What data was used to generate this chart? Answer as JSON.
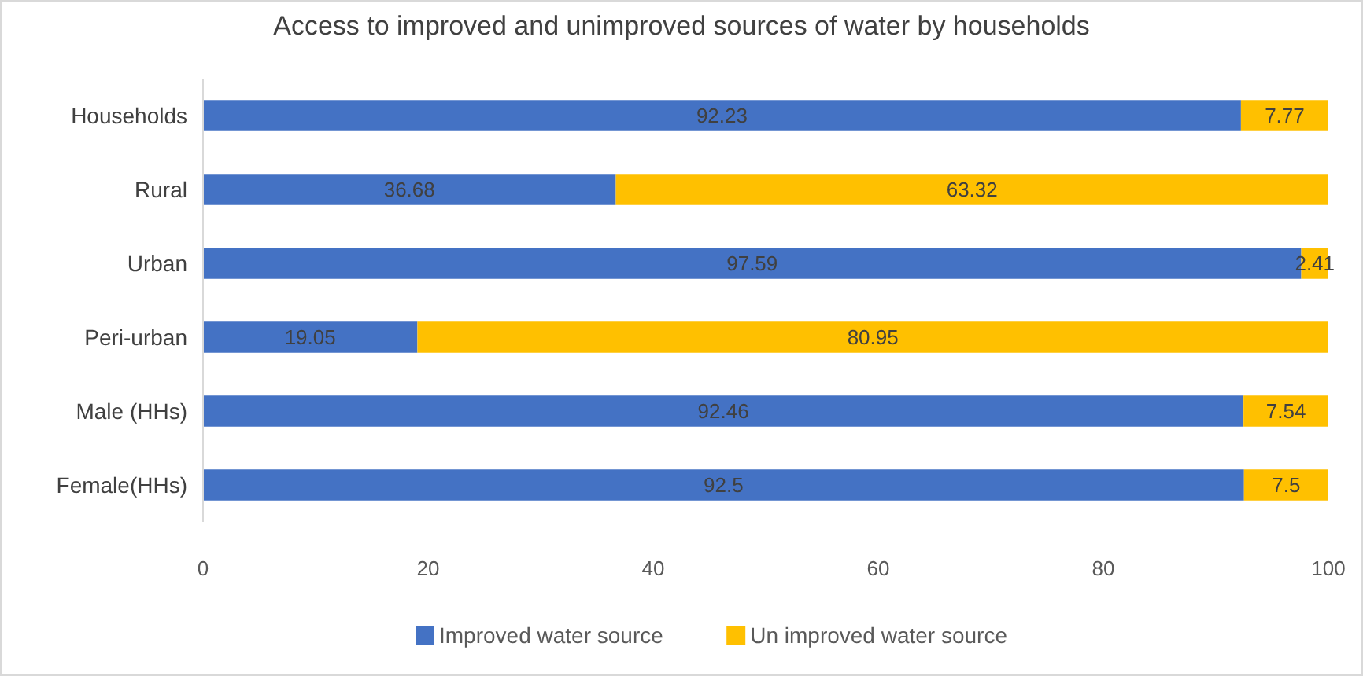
{
  "chart_data": {
    "type": "bar",
    "orientation": "horizontal",
    "stacked": true,
    "title": "Access to improved and unimproved sources of water by households",
    "categories": [
      "Households",
      "Rural",
      "Urban",
      "Peri-urban",
      "Male (HHs)",
      "Female(HHs)"
    ],
    "series": [
      {
        "name": "Improved water source",
        "color": "#4472c4",
        "values": [
          92.23,
          36.68,
          97.59,
          19.05,
          92.46,
          92.5
        ]
      },
      {
        "name": "Un improved water source",
        "color": "#ffc000",
        "values": [
          7.77,
          63.32,
          2.41,
          80.95,
          7.54,
          7.5
        ]
      }
    ],
    "xlim": [
      0,
      100
    ],
    "xticks": [
      0,
      20,
      40,
      60,
      80,
      100
    ],
    "data_labels": true,
    "legend": "bottom",
    "grid": false
  }
}
